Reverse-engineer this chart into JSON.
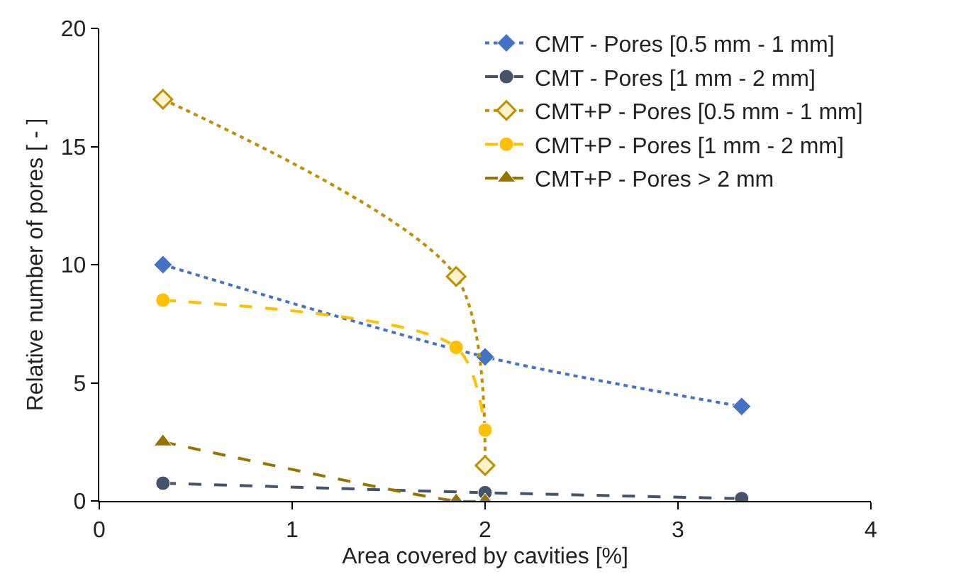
{
  "chart_data": {
    "type": "line",
    "xlabel": "Area covered by cavities [%]",
    "ylabel": "Relative number of pores [ - ]",
    "xlim": [
      0,
      4
    ],
    "xticks": [
      0,
      1,
      2,
      3,
      4
    ],
    "ylim": [
      0,
      20
    ],
    "yticks": [
      0,
      5,
      10,
      15,
      20
    ],
    "legend": "top right",
    "series": [
      {
        "name": "CMT - Pores [0.5 mm - 1 mm]",
        "color": "#4472c4",
        "marker": "diamond",
        "line_style": "dotted",
        "x": [
          0.33,
          2.0,
          3.33
        ],
        "values": [
          10,
          6.1,
          4
        ]
      },
      {
        "name": "CMT - Pores [1 mm - 2 mm]",
        "color": "#44546a",
        "marker": "circle",
        "line_style": "dashed",
        "x": [
          0.33,
          2.0,
          3.33
        ],
        "values": [
          0.75,
          0.35,
          0.1
        ]
      },
      {
        "name": "CMT+P - Pores [0.5 mm - 1 mm]",
        "color": "#bf8f00",
        "marker": "diamond-open",
        "line_style": "dotted",
        "x": [
          0.33,
          1.85,
          2.0
        ],
        "values": [
          17,
          9.5,
          1.5
        ]
      },
      {
        "name": "CMT+P - Pores [1 mm - 2 mm]",
        "color": "#ffc000",
        "marker": "circle",
        "line_style": "dashed",
        "x": [
          0.33,
          1.85,
          2.0
        ],
        "values": [
          8.5,
          6.5,
          3
        ]
      },
      {
        "name": "CMT+P - Pores > 2 mm",
        "color": "#997300",
        "marker": "triangle",
        "line_style": "dashed",
        "x": [
          0.33,
          1.85,
          2.0
        ],
        "values": [
          2.5,
          0,
          0
        ]
      }
    ]
  }
}
